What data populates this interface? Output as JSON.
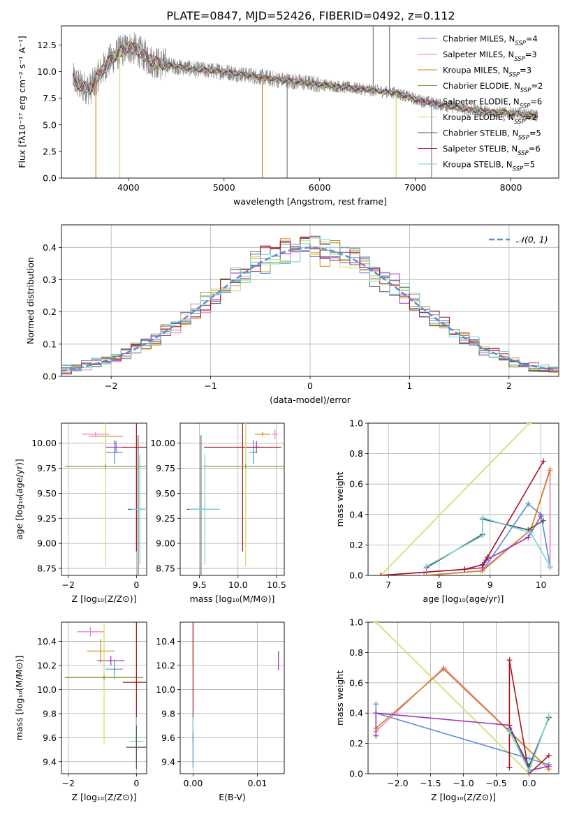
{
  "figure": {
    "title": "PLATE=0847, MJD=52426, FIBERID=0492, z=0.112"
  },
  "colors": {
    "chabrier_miles": "#5b8bd6",
    "salpeter_miles": "#e57fbf",
    "kroupa_miles": "#d2861e",
    "chabrier_elodie": "#7a9a3a",
    "salpeter_elodie": "#9a35b8",
    "kroupa_elodie": "#c7e062",
    "chabrier_stelib": "#555555",
    "salpeter_stelib": "#a6141c",
    "kroupa_stelib": "#6fd6d6",
    "data": "#808080",
    "normal": "#5b8bd6"
  },
  "legend_spectrum": [
    {
      "label": "Chabrier MILES, N",
      "sub": "SSP",
      "val": "=4",
      "color_key": "chabrier_miles"
    },
    {
      "label": "Salpeter MILES, N",
      "sub": "SSP",
      "val": "=3",
      "color_key": "salpeter_miles"
    },
    {
      "label": "Kroupa MILES, N",
      "sub": "SSP",
      "val": "=3",
      "color_key": "kroupa_miles"
    },
    {
      "label": "Chabrier ELODIE, N",
      "sub": "SSP",
      "val": "=2",
      "color_key": "chabrier_elodie"
    },
    {
      "label": "Salpeter ELODIE, N",
      "sub": "SSP",
      "val": "=6",
      "color_key": "salpeter_elodie"
    },
    {
      "label": "Kroupa ELODIE, N",
      "sub": "SSP",
      "val": "=2",
      "color_key": "kroupa_elodie"
    },
    {
      "label": "Chabrier STELIB, N",
      "sub": "SSP",
      "val": "=5",
      "color_key": "chabrier_stelib"
    },
    {
      "label": "Salpeter STELIB, N",
      "sub": "SSP",
      "val": "=6",
      "color_key": "salpeter_stelib"
    },
    {
      "label": "Kroupa STELIB, N",
      "sub": "SSP",
      "val": "=5",
      "color_key": "kroupa_stelib"
    }
  ],
  "chart_data": [
    {
      "id": "spectrum",
      "type": "line",
      "xlabel": "wavelength [Angstrom, rest frame]",
      "ylabel": "Flux [fλ10⁻¹⁷ erg cm⁻² s⁻¹ A⁻¹]",
      "xlim": [
        3300,
        8500
      ],
      "ylim": [
        0,
        14.3
      ],
      "xticks": [
        4000,
        5000,
        6000,
        7000,
        8000
      ],
      "yticks": [
        0.0,
        2.5,
        5.0,
        7.5,
        10.0,
        12.5
      ],
      "grid": false,
      "legend": "top-right",
      "model_continuum": {
        "x": [
          3420,
          3500,
          3600,
          3700,
          3800,
          3900,
          4000,
          4100,
          4200,
          4300,
          4500,
          4700,
          5000,
          5300,
          5600,
          6000,
          6400,
          6800,
          7000,
          7200,
          7500,
          7800,
          8000,
          8200,
          8280
        ],
        "y": [
          9.3,
          8.6,
          8.4,
          9.8,
          11.0,
          11.8,
          12.3,
          12.0,
          11.2,
          10.8,
          10.5,
          10.2,
          10.0,
          9.6,
          9.2,
          8.8,
          8.4,
          8.0,
          7.4,
          7.0,
          6.5,
          6.2,
          6.1,
          5.9,
          5.9
        ]
      },
      "spikes": [
        {
          "x": 3660,
          "y": 0.0,
          "color_key": "kroupa_miles"
        },
        {
          "x": 3910,
          "y": 0.0,
          "color_key": "kroupa_elodie"
        },
        {
          "x": 5400,
          "y": 0.0,
          "color_key": "kroupa_miles"
        },
        {
          "x": 5660,
          "y": 0.0,
          "color_key": "data"
        },
        {
          "x": 6800,
          "y": 0.0,
          "color_key": "kroupa_elodie"
        },
        {
          "x": 7170,
          "y": 0.0,
          "color_key": "data"
        },
        {
          "x": 6560,
          "y": 14.3,
          "color_key": "data"
        },
        {
          "x": 6730,
          "y": 14.3,
          "color_key": "data"
        }
      ]
    },
    {
      "id": "residuals",
      "type": "histogram",
      "xlabel": "(data-model)/error",
      "ylabel": "Normed distribution",
      "xlim": [
        -2.5,
        2.5
      ],
      "ylim": [
        0,
        0.47
      ],
      "xticks": [
        -2,
        -1,
        0,
        1,
        2
      ],
      "yticks": [
        0.0,
        0.1,
        0.2,
        0.3,
        0.4
      ],
      "grid": true,
      "legend": "top-right",
      "bin_width": 0.1,
      "normal_curve": {
        "label": "𝒩(0, 1)",
        "mean": 0,
        "sigma": 1
      }
    },
    {
      "id": "age_vs_Z",
      "type": "errorbar",
      "xlabel": "Z [log₁₀(Z/Z⊙)]",
      "ylabel": "age  [log₁₀(age/yr)]",
      "xlim": [
        -2.2,
        0.3
      ],
      "ylim": [
        8.68,
        10.2
      ],
      "xticks": [
        -2,
        0
      ],
      "yticks": [
        8.75,
        9.0,
        9.25,
        9.5,
        9.75,
        10.0
      ],
      "grid": true,
      "points": [
        {
          "color_key": "salpeter_miles",
          "x": -1.2,
          "xerr": 0.4,
          "y": 10.09,
          "yerr": 0.02
        },
        {
          "color_key": "kroupa_miles",
          "x": -0.9,
          "xerr": 0.5,
          "y": 10.07,
          "yerr": 0.1
        },
        {
          "color_key": "salpeter_elodie",
          "x": -0.6,
          "xerr": 0.3,
          "y": 9.96,
          "yerr": 0.06
        },
        {
          "color_key": "chabrier_miles",
          "x": -0.65,
          "xerr": 0.25,
          "y": 9.91,
          "yerr": 0.12
        },
        {
          "color_key": "salpeter_stelib",
          "x": 0.0,
          "xerr": 0.4,
          "y": 9.96,
          "yerr": 1.04
        },
        {
          "color_key": "chabrier_stelib",
          "x": 0.05,
          "xerr": 0.3,
          "y": 9.34,
          "yerr": 0.74
        },
        {
          "color_key": "kroupa_stelib",
          "x": 0.1,
          "xerr": 0.25,
          "y": 9.34,
          "yerr": 0.55
        },
        {
          "color_key": "kroupa_elodie",
          "x": -0.9,
          "xerr": 1.2,
          "y": 9.77,
          "yerr": 1.0
        },
        {
          "color_key": "chabrier_elodie",
          "x": -0.9,
          "xerr": 1.2,
          "y": 9.77,
          "yerr": 0.02
        }
      ]
    },
    {
      "id": "age_vs_mass",
      "type": "errorbar",
      "xlabel": "mass [log₁₀(M/M⊙)]",
      "ylabel": "",
      "xlim": [
        9.25,
        10.6
      ],
      "ylim": [
        8.68,
        10.2
      ],
      "xticks": [
        9.5,
        10.0,
        10.5
      ],
      "yticks": [
        8.75,
        9.0,
        9.25,
        9.5,
        9.75,
        10.0
      ],
      "grid": true,
      "points": [
        {
          "color_key": "salpeter_miles",
          "x": 10.48,
          "xerr": 0.04,
          "y": 10.09,
          "yerr": 0.05
        },
        {
          "color_key": "kroupa_miles",
          "x": 10.32,
          "xerr": 0.1,
          "y": 10.09,
          "yerr": 0.02
        },
        {
          "color_key": "salpeter_elodie",
          "x": 10.24,
          "xerr": 0.04,
          "y": 9.96,
          "yerr": 0.06
        },
        {
          "color_key": "chabrier_miles",
          "x": 10.2,
          "xerr": 0.05,
          "y": 9.91,
          "yerr": 0.12
        },
        {
          "color_key": "salpeter_stelib",
          "x": 10.06,
          "xerr": 0.5,
          "y": 9.96,
          "yerr": 1.04
        },
        {
          "color_key": "chabrier_stelib",
          "x": 9.52,
          "xerr": 0.18,
          "y": 9.34,
          "yerr": 0.74
        },
        {
          "color_key": "kroupa_stelib",
          "x": 9.57,
          "xerr": 0.2,
          "y": 9.34,
          "yerr": 0.55
        },
        {
          "color_key": "kroupa_elodie",
          "x": 10.1,
          "xerr": 0.55,
          "y": 9.77,
          "yerr": 1.0
        },
        {
          "color_key": "chabrier_elodie",
          "x": 10.1,
          "xerr": 0.55,
          "y": 9.77,
          "yerr": 0.02
        }
      ]
    },
    {
      "id": "weight_vs_age",
      "type": "line",
      "xlabel": "age  [log₁₀(age/yr)]",
      "ylabel": "mass weight",
      "xlim": [
        6.6,
        10.35
      ],
      "ylim": [
        0,
        1.0
      ],
      "xticks": [
        7,
        8,
        9,
        10
      ],
      "yticks": [
        0.0,
        0.2,
        0.4,
        0.6,
        0.8,
        1.0
      ],
      "grid": true,
      "series": [
        {
          "color_key": "kroupa_elodie",
          "x": [
            6.85,
            9.77
          ],
          "y": [
            0.0,
            1.0
          ]
        },
        {
          "color_key": "chabrier_miles",
          "x": [
            7.7,
            8.85,
            9.75,
            10.0,
            10.18
          ],
          "y": [
            0.0,
            0.03,
            0.47,
            0.4,
            0.06
          ]
        },
        {
          "color_key": "salpeter_miles",
          "x": [
            7.75,
            8.82,
            9.8,
            10.18,
            10.18
          ],
          "y": [
            0.0,
            0.03,
            0.3,
            0.7,
            0.05
          ]
        },
        {
          "color_key": "kroupa_miles",
          "x": [
            7.75,
            8.85,
            9.8,
            10.18
          ],
          "y": [
            0.0,
            0.03,
            0.3,
            0.69
          ]
        },
        {
          "color_key": "salpeter_elodie",
          "x": [
            6.85,
            8.5,
            8.85,
            8.92,
            9.75,
            10.0
          ],
          "y": [
            0.0,
            0.04,
            0.05,
            0.1,
            0.25,
            0.39
          ]
        },
        {
          "color_key": "salpeter_stelib",
          "x": [
            6.85,
            8.5,
            8.85,
            8.95,
            10.05
          ],
          "y": [
            0.0,
            0.04,
            0.07,
            0.12,
            0.75
          ]
        },
        {
          "color_key": "chabrier_stelib",
          "x": [
            7.75,
            8.85,
            8.85,
            9.75,
            10.05
          ],
          "y": [
            0.05,
            0.27,
            0.37,
            0.3,
            0.36
          ]
        },
        {
          "color_key": "kroupa_stelib",
          "x": [
            7.75,
            8.85,
            8.85,
            9.8,
            10.18
          ],
          "y": [
            0.06,
            0.26,
            0.38,
            0.28,
            0.06
          ]
        }
      ]
    },
    {
      "id": "mass_vs_Z",
      "type": "errorbar",
      "xlabel": "Z [log₁₀(Z/Z⊙)]",
      "ylabel": "mass [log₁₀(M/M⊙)]",
      "xlim": [
        -2.2,
        0.3
      ],
      "ylim": [
        9.3,
        10.56
      ],
      "xticks": [
        -2,
        0
      ],
      "yticks": [
        9.4,
        9.6,
        9.8,
        10.0,
        10.2,
        10.4
      ],
      "grid": true,
      "points": [
        {
          "color_key": "salpeter_miles",
          "x": -1.35,
          "xerr": 0.4,
          "y": 10.48,
          "yerr": 0.04
        },
        {
          "color_key": "kroupa_miles",
          "x": -1.05,
          "xerr": 0.4,
          "y": 10.32,
          "yerr": 0.1
        },
        {
          "color_key": "salpeter_elodie",
          "x": -0.75,
          "xerr": 0.4,
          "y": 10.24,
          "yerr": 0.04
        },
        {
          "color_key": "chabrier_miles",
          "x": -0.65,
          "xerr": 0.25,
          "y": 10.17,
          "yerr": 0.08
        },
        {
          "color_key": "kroupa_elodie",
          "x": -0.95,
          "xerr": 1.15,
          "y": 10.1,
          "yerr": 0.55
        },
        {
          "color_key": "chabrier_elodie",
          "x": -0.95,
          "xerr": 1.15,
          "y": 10.1,
          "yerr": 0.02
        },
        {
          "color_key": "salpeter_stelib",
          "x": 0.0,
          "xerr": 0.4,
          "y": 10.06,
          "yerr": 0.5
        },
        {
          "color_key": "kroupa_stelib",
          "x": 0.0,
          "xerr": 0.2,
          "y": 9.57,
          "yerr": 0.2
        },
        {
          "color_key": "chabrier_stelib",
          "x": 0.0,
          "xerr": 0.3,
          "y": 9.52,
          "yerr": 0.18
        }
      ]
    },
    {
      "id": "mass_vs_ebv",
      "type": "errorbar",
      "xlabel": "E(B-V)",
      "ylabel": "",
      "xlim": [
        -0.002,
        0.0142
      ],
      "ylim": [
        9.3,
        10.56
      ],
      "xticks": [
        0.0,
        0.01
      ],
      "yticks": [
        9.4,
        9.6,
        9.8,
        10.0,
        10.2,
        10.4
      ],
      "grid": true,
      "points": [
        {
          "color_key": "salpeter_miles",
          "x": 0.0,
          "xerr": 0,
          "y": 10.48,
          "yerr": 0.06
        },
        {
          "color_key": "kroupa_miles",
          "x": 0.0,
          "xerr": 0,
          "y": 10.32,
          "yerr": 0.1
        },
        {
          "color_key": "salpeter_stelib",
          "x": 0.0,
          "xerr": 0,
          "y": 10.06,
          "yerr": 0.5
        },
        {
          "color_key": "salpeter_elodie",
          "x": 0.0133,
          "xerr": 0,
          "y": 10.24,
          "yerr": 0.08
        },
        {
          "color_key": "kroupa_stelib",
          "x": 0.0,
          "xerr": 0,
          "y": 9.57,
          "yerr": 0.2
        },
        {
          "color_key": "chabrier_miles",
          "x": 0.0,
          "xerr": 0,
          "y": 9.5,
          "yerr": 0.15
        }
      ]
    },
    {
      "id": "weight_vs_Z",
      "type": "line",
      "xlabel": "Z [log₁₀(Z/Z⊙)]",
      "ylabel": "mass weight",
      "xlim": [
        -2.45,
        0.45
      ],
      "ylim": [
        0,
        1.0
      ],
      "xticks": [
        -2.0,
        -1.5,
        -1.0,
        -0.5,
        0.0
      ],
      "yticks": [
        0.0,
        0.2,
        0.4,
        0.6,
        0.8,
        1.0
      ],
      "grid": true,
      "series": [
        {
          "color_key": "kroupa_elodie",
          "x": [
            -2.33,
            0.0
          ],
          "y": [
            1.0,
            0.0
          ]
        },
        {
          "color_key": "chabrier_miles",
          "x": [
            -2.33,
            -2.33,
            0.0,
            0.3
          ],
          "y": [
            0.46,
            0.4,
            0.1,
            0.06
          ]
        },
        {
          "color_key": "salpeter_miles",
          "x": [
            -2.33,
            -1.3,
            0.3
          ],
          "y": [
            0.28,
            0.7,
            0.03
          ]
        },
        {
          "color_key": "kroupa_miles",
          "x": [
            -2.33,
            -1.3,
            0.3
          ],
          "y": [
            0.3,
            0.69,
            0.03
          ]
        },
        {
          "color_key": "salpeter_elodie",
          "x": [
            -2.33,
            -2.33,
            -0.3,
            0.0,
            0.3
          ],
          "y": [
            0.25,
            0.4,
            0.32,
            0.02,
            0.05
          ]
        },
        {
          "color_key": "salpeter_stelib",
          "x": [
            -0.3,
            -0.3,
            -0.3,
            0.0,
            0.3
          ],
          "y": [
            0.04,
            0.32,
            0.75,
            0.0,
            0.12
          ]
        },
        {
          "color_key": "chabrier_stelib",
          "x": [
            -0.3,
            0.0,
            0.3
          ],
          "y": [
            0.3,
            0.05,
            0.37
          ]
        },
        {
          "color_key": "kroupa_stelib",
          "x": [
            -0.3,
            0.0,
            0.3
          ],
          "y": [
            0.28,
            0.02,
            0.38
          ]
        }
      ]
    }
  ]
}
